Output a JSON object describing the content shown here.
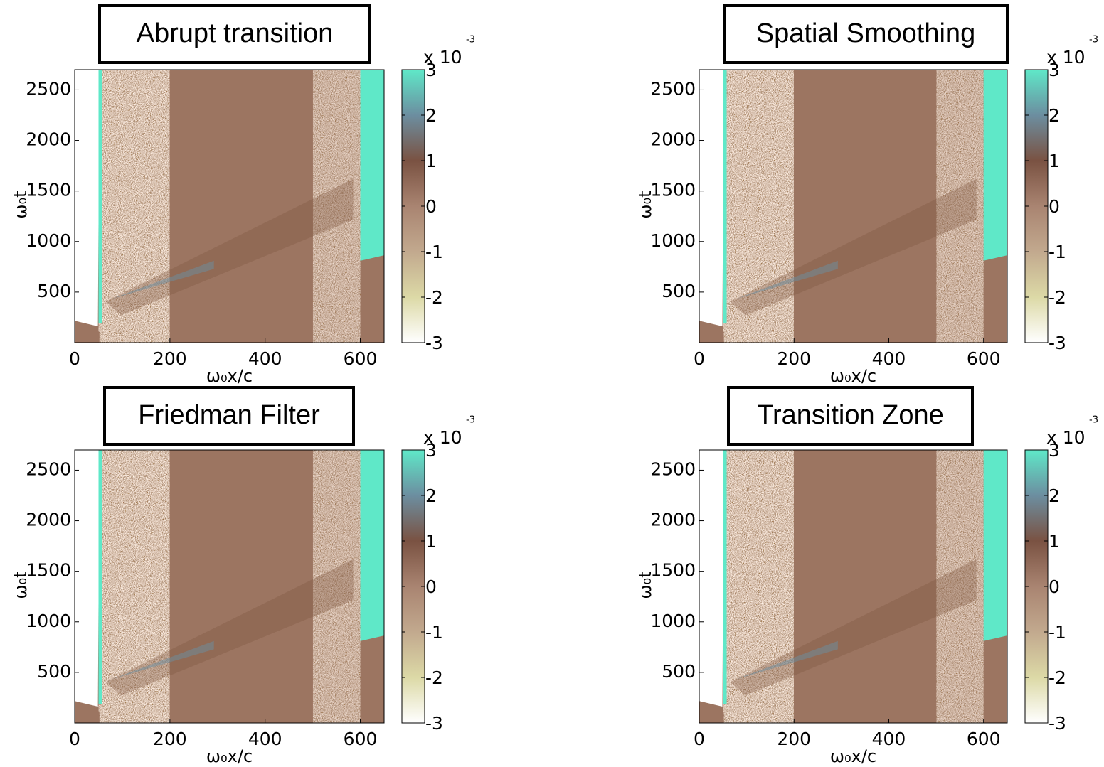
{
  "chart_data": [
    {
      "type": "heatmap",
      "title": "Abrupt transition",
      "xlabel": "ω₀x/c",
      "ylabel": "ω₀t",
      "xlim": [
        0,
        650
      ],
      "ylim": [
        0,
        2700
      ],
      "xticks": [
        0,
        200,
        400,
        600
      ],
      "yticks": [
        500,
        1000,
        1500,
        2000,
        2500
      ],
      "colorbar": {
        "lim": [
          -3,
          3
        ],
        "ticks": [
          -3,
          -2,
          -1,
          0,
          1,
          2,
          3
        ],
        "multiplier": "x 10",
        "exponent": "-3",
        "colormap": [
          "#ffffff",
          "#dcd9a6",
          "#c2a98e",
          "#a98471",
          "#7a5242",
          "#6c8ea0",
          "#5fe8c8"
        ]
      }
    },
    {
      "type": "heatmap",
      "title": "Spatial Smoothing",
      "xlabel": "ω₀x/c",
      "ylabel": "ω₀t",
      "xlim": [
        0,
        650
      ],
      "ylim": [
        0,
        2700
      ],
      "xticks": [
        0,
        200,
        400,
        600
      ],
      "yticks": [
        500,
        1000,
        1500,
        2000,
        2500
      ],
      "colorbar": {
        "lim": [
          -3,
          3
        ],
        "ticks": [
          -3,
          -2,
          -1,
          0,
          1,
          2,
          3
        ],
        "multiplier": "x 10",
        "exponent": "-3",
        "colormap": [
          "#ffffff",
          "#dcd9a6",
          "#c2a98e",
          "#a98471",
          "#7a5242",
          "#6c8ea0",
          "#5fe8c8"
        ]
      }
    },
    {
      "type": "heatmap",
      "title": "Friedman Filter",
      "xlabel": "ω₀x/c",
      "ylabel": "ω₀t",
      "xlim": [
        0,
        650
      ],
      "ylim": [
        0,
        2700
      ],
      "xticks": [
        0,
        200,
        400,
        600
      ],
      "yticks": [
        500,
        1000,
        1500,
        2000,
        2500
      ],
      "colorbar": {
        "lim": [
          -3,
          3
        ],
        "ticks": [
          -3,
          -2,
          -1,
          0,
          1,
          2,
          3
        ],
        "multiplier": "x 10",
        "exponent": "-3",
        "colormap": [
          "#ffffff",
          "#dcd9a6",
          "#c2a98e",
          "#a98471",
          "#7a5242",
          "#6c8ea0",
          "#5fe8c8"
        ]
      }
    },
    {
      "type": "heatmap",
      "title": "Transition Zone",
      "xlabel": "ω₀x/c",
      "ylabel": "ω₀t",
      "xlim": [
        0,
        650
      ],
      "ylim": [
        0,
        2700
      ],
      "xticks": [
        0,
        200,
        400,
        600
      ],
      "yticks": [
        500,
        1000,
        1500,
        2000,
        2500
      ],
      "colorbar": {
        "lim": [
          -3,
          3
        ],
        "ticks": [
          -3,
          -2,
          -1,
          0,
          1,
          2,
          3
        ],
        "multiplier": "x 10",
        "exponent": "-3",
        "colormap": [
          "#ffffff",
          "#dcd9a6",
          "#c2a98e",
          "#a98471",
          "#7a5242",
          "#6c8ea0",
          "#5fe8c8"
        ]
      }
    }
  ]
}
